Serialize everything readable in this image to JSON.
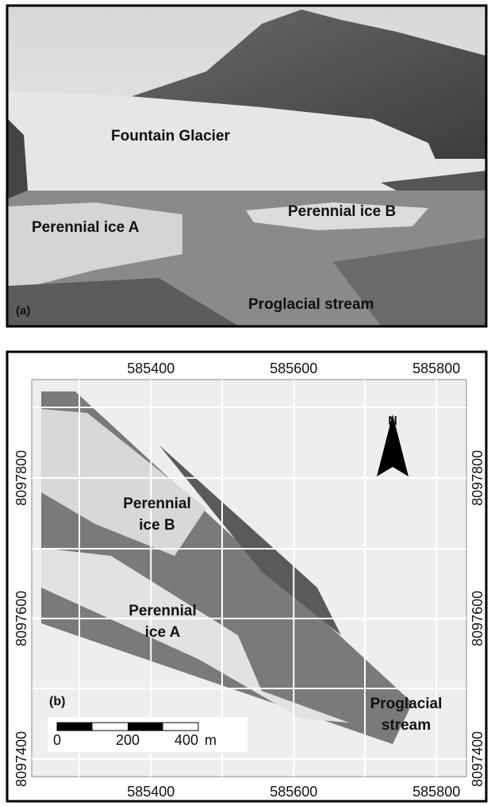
{
  "panel_a": {
    "label": "(a)",
    "annotations": [
      "Fountain Glacier",
      "Perennial ice A",
      "Perennial ice B",
      "Proglacial stream"
    ]
  },
  "panel_b": {
    "label": "(b)",
    "north": "N",
    "xlim": [
      585233,
      585842
    ],
    "ylim": [
      8097375,
      8097940
    ],
    "xticks": [
      585400,
      585600,
      585800
    ],
    "yticks": [
      8097400,
      8097600,
      8097800
    ],
    "annotations": [
      [
        "Perennial",
        "ice B"
      ],
      [
        "Perennial",
        "ice A"
      ],
      [
        "Proglacial",
        "stream"
      ]
    ],
    "scale_bar": {
      "labels": [
        "0",
        "200",
        "400"
      ],
      "unit": "m"
    }
  }
}
